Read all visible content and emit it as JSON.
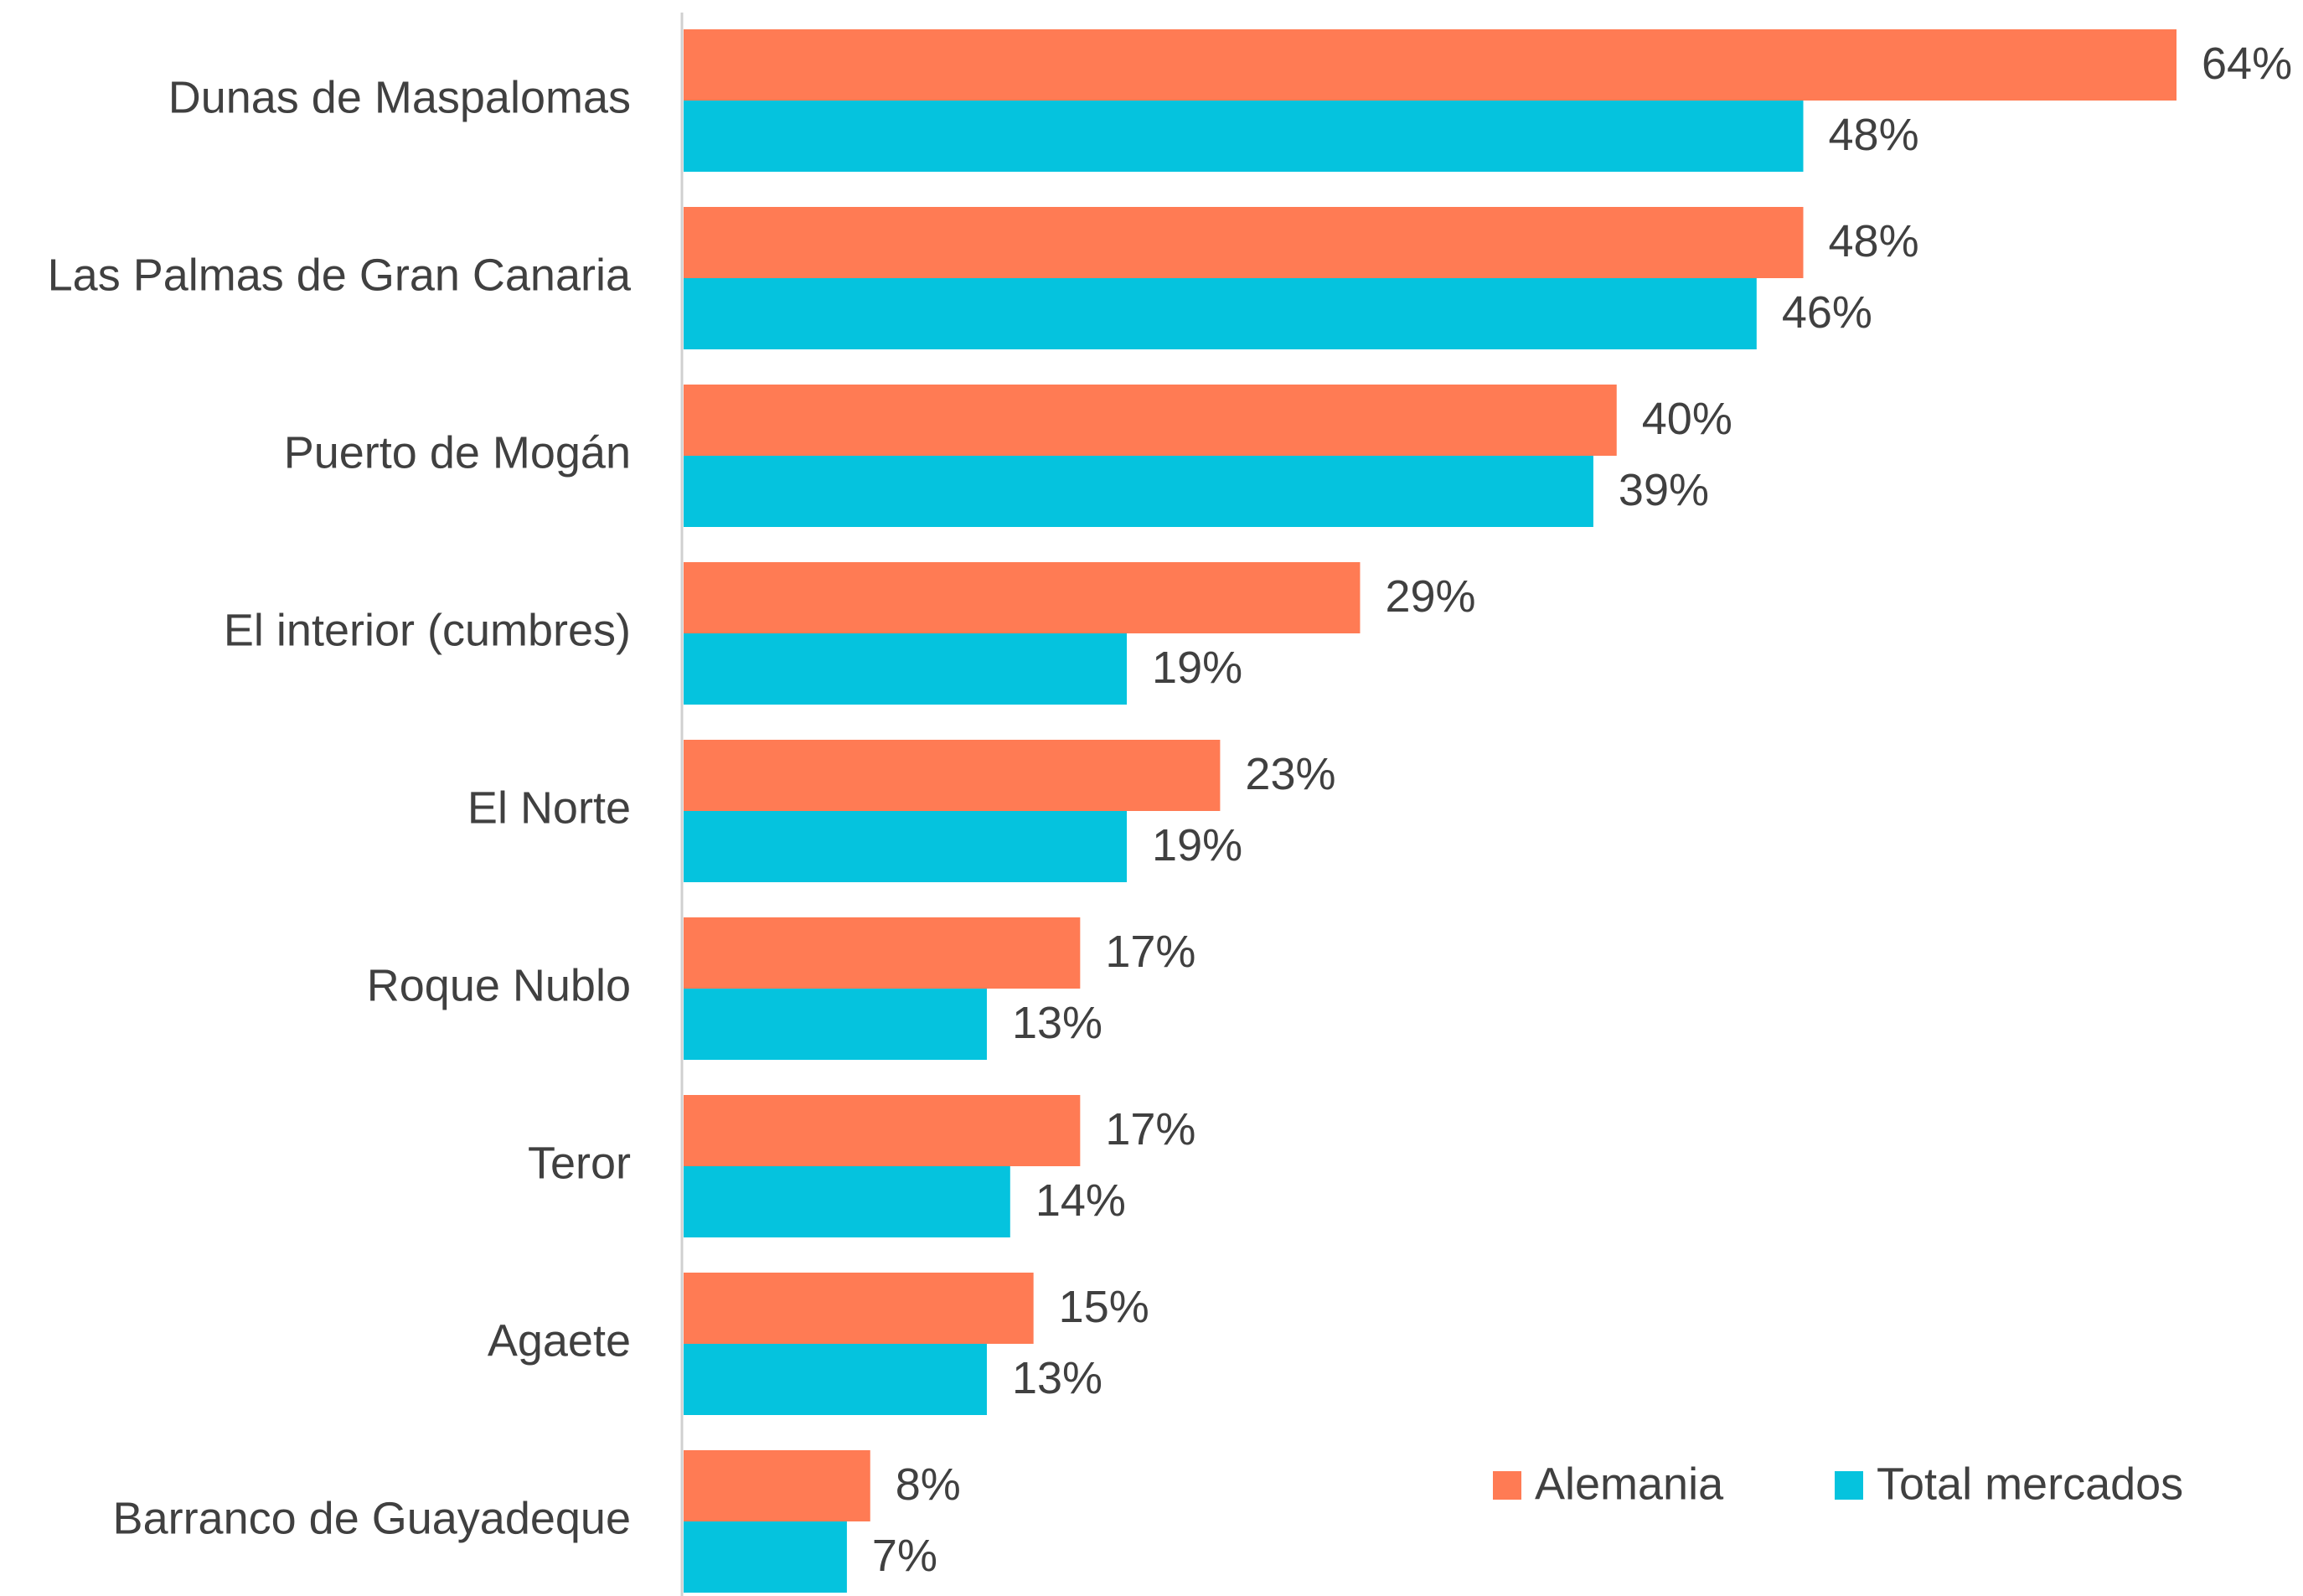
{
  "chart_data": {
    "type": "bar",
    "orientation": "horizontal",
    "categories": [
      "Dunas de Maspalomas",
      "Las Palmas de Gran Canaria",
      "Puerto de Mogán",
      "El interior (cumbres)",
      "El Norte",
      "Roque Nublo",
      "Teror",
      "Agaete",
      "Barranco de Guayadeque"
    ],
    "series": [
      {
        "name": "Alemania",
        "color": "#ff7b54",
        "values": [
          64,
          48,
          40,
          29,
          23,
          17,
          17,
          15,
          8
        ],
        "value_labels": [
          "64%",
          "48%",
          "40%",
          "29%",
          "23%",
          "17%",
          "17%",
          "15%",
          "8%"
        ]
      },
      {
        "name": "Total mercados",
        "color": "#05c3de",
        "values": [
          48,
          46,
          39,
          19,
          19,
          13,
          14,
          13,
          7
        ],
        "value_labels": [
          "48%",
          "46%",
          "39%",
          "19%",
          "19%",
          "13%",
          "14%",
          "13%",
          "7%"
        ]
      }
    ],
    "legend": "bottom-right"
  }
}
